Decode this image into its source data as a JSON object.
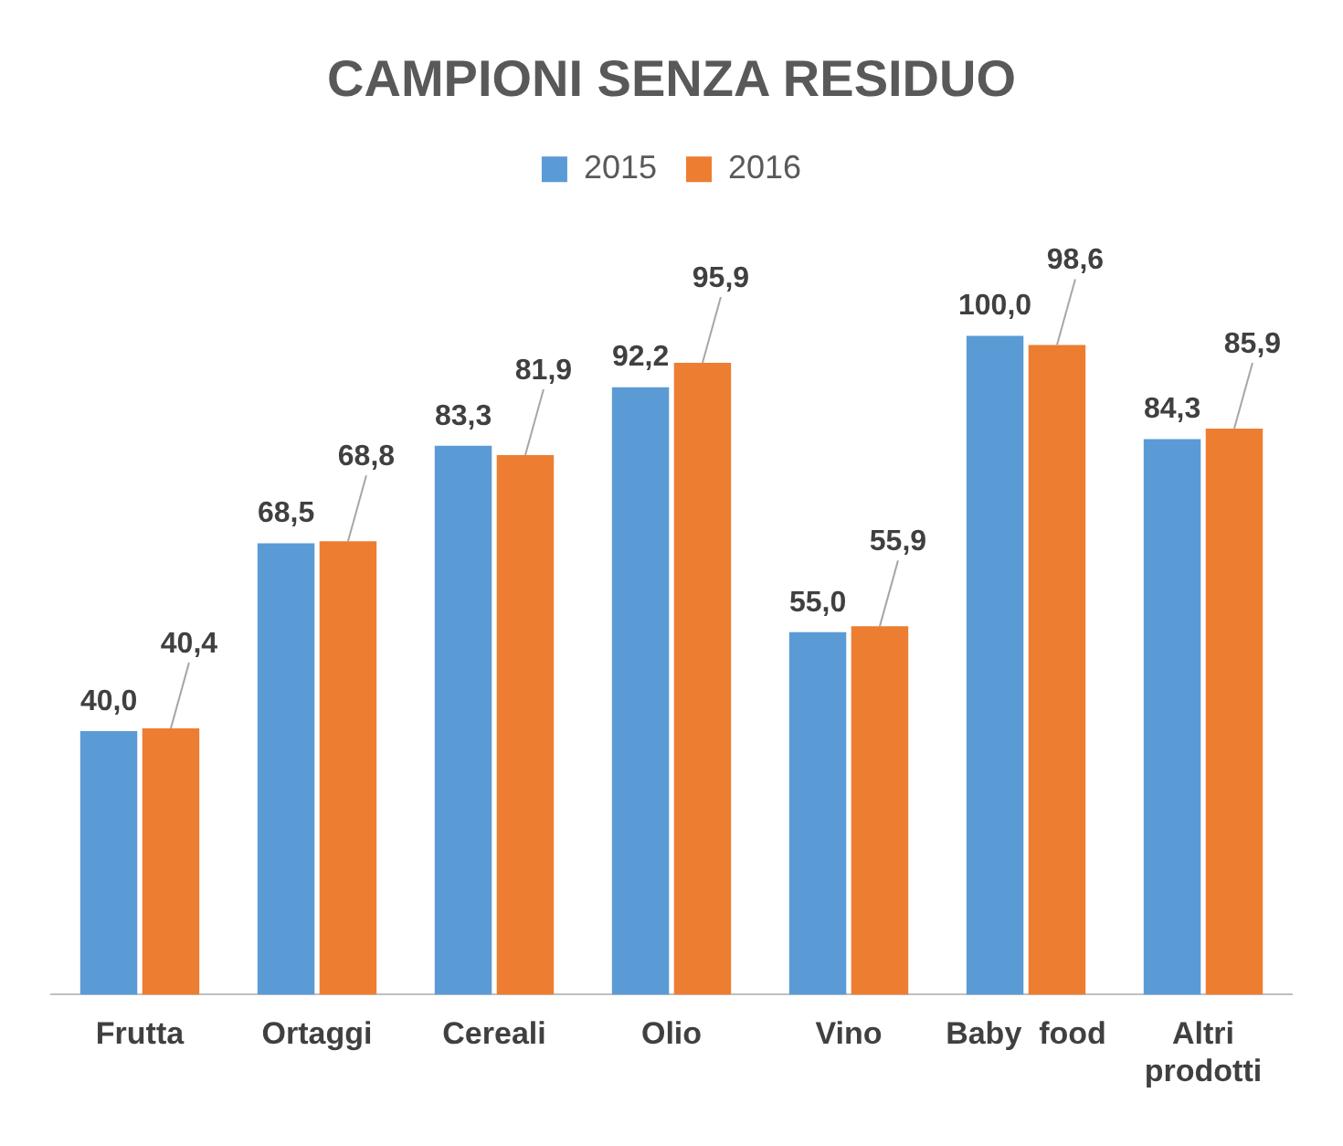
{
  "chart_data": {
    "type": "bar",
    "title": "CAMPIONI SENZA RESIDUO",
    "categories": [
      "Frutta",
      "Ortaggi",
      "Cereali",
      "Olio",
      "Vino",
      "Baby  food",
      "Altri prodotti"
    ],
    "series": [
      {
        "name": "2015",
        "color": "#5b9bd5",
        "values": [
          40.0,
          68.5,
          83.3,
          92.2,
          55.0,
          100.0,
          84.3
        ],
        "value_labels": [
          "40,0",
          "68,5",
          "83,3",
          "92,2",
          "55,0",
          "100,0",
          "84,3"
        ]
      },
      {
        "name": "2016",
        "color": "#ed7d31",
        "values": [
          40.4,
          68.8,
          81.9,
          95.9,
          55.9,
          98.6,
          85.9
        ],
        "value_labels": [
          "40,4",
          "68,8",
          "81,9",
          "95,9",
          "55,9",
          "98,6",
          "85,9"
        ]
      }
    ],
    "legend": "top",
    "grid": false
  }
}
